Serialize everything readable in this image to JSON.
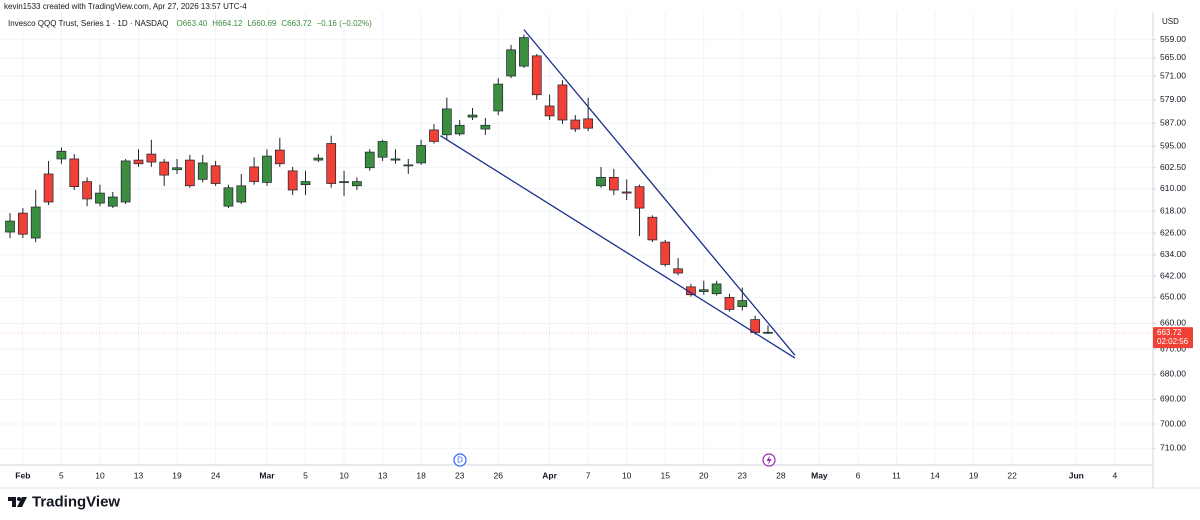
{
  "header": {
    "attribution": "kevin1533 created with TradingView.com, Apr 27, 2026 13:57 UTC-4",
    "symbol": "Invesco QQQ Trust, Series 1 · 1D · NASDAQ",
    "ohlc": [
      "O663.40",
      "H664.12",
      "L660.69",
      "C663.72",
      "−0.16 (−0.02%)"
    ]
  },
  "brand": "TradingView",
  "chart_data": {
    "type": "candlestick",
    "currency": "USD",
    "categories": [
      null,
      "Feb",
      null,
      null,
      "5",
      null,
      null,
      "10",
      null,
      null,
      "13",
      null,
      null,
      "19",
      null,
      null,
      "24",
      null,
      null,
      null,
      "Mar",
      null,
      null,
      "5",
      null,
      null,
      "10",
      null,
      null,
      "13",
      null,
      null,
      "18",
      null,
      null,
      "23",
      null,
      null,
      "26",
      null,
      null,
      null,
      "Apr",
      null,
      null,
      "7",
      null,
      null,
      "10",
      null,
      null,
      "15",
      null,
      null,
      "20",
      null,
      null,
      "23",
      null,
      null,
      "28",
      null,
      null,
      "May",
      null,
      null,
      "6",
      null,
      null,
      "11",
      null,
      null,
      "14",
      null,
      null,
      "19",
      null,
      null,
      "22",
      null,
      null,
      null,
      null,
      "Jun",
      null,
      null,
      "4",
      null,
      null
    ],
    "open": [
      621.6,
      626.4,
      616.5,
      614.7,
      596.7,
      609.2,
      613.6,
      611.5,
      612.9,
      600.1,
      601.1,
      600.5,
      605.1,
      602.5,
      608.9,
      600.8,
      608.1,
      609.6,
      608.9,
      607.4,
      598.4,
      601.1,
      610.4,
      607.4,
      599.1,
      608.1,
      607.4,
      607.4,
      597,
      593.3,
      599.4,
      601.5,
      594.7,
      593.3,
      582.1,
      587.7,
      584.2,
      587.7,
      573.7,
      562.3,
      558.3,
      577.3,
      584.5,
      585.9,
      589,
      588.7,
      605.9,
      610.4,
      611.5,
      616.9,
      628.5,
      637.6,
      640.8,
      649,
      647.1,
      644.9,
      654.6,
      651.2,
      663.5,
      663.4,
      null,
      null,
      null,
      null,
      null,
      null,
      null,
      null,
      null,
      null,
      null,
      null,
      null,
      null,
      null,
      null,
      null,
      null,
      null,
      null,
      null,
      null,
      null,
      null,
      null,
      null,
      null,
      null,
      null
    ],
    "high": [
      627.8,
      627.8,
      629.3,
      615.8,
      601.1,
      610.4,
      616.2,
      616.2,
      616.9,
      615.4,
      602.2,
      602.2,
      608.9,
      604.7,
      609.6,
      607.7,
      608.9,
      616.9,
      615.4,
      608.5,
      608.9,
      602.2,
      612.2,
      612.2,
      600.5,
      609.6,
      612.5,
      610.4,
      603.6,
      600.1,
      601.1,
      604.7,
      601.5,
      594,
      592.7,
      591.3,
      585.9,
      591,
      584.2,
      571.7,
      568.3,
      579,
      585.9,
      587.3,
      590,
      589.7,
      609.6,
      612.2,
      614,
      627.1,
      629.3,
      638.4,
      641.6,
      649.7,
      649,
      649.3,
      655.4,
      655,
      664.3,
      664.12,
      null,
      null,
      null,
      null,
      null,
      null,
      null,
      null,
      null,
      null,
      null,
      null,
      null,
      null,
      null,
      null,
      null,
      null,
      null,
      null,
      null,
      null,
      null,
      null,
      null,
      null,
      null,
      null,
      null
    ],
    "low": [
      618.7,
      616.9,
      610.4,
      600.1,
      595.4,
      597.7,
      605.9,
      608.5,
      611.1,
      599.4,
      596,
      592.7,
      599.4,
      599.4,
      598,
      598,
      600.1,
      608.5,
      604.7,
      598.8,
      596,
      592,
      602.2,
      603.6,
      597.7,
      591.3,
      603.6,
      605.9,
      596,
      592.7,
      596,
      599.4,
      592.7,
      587.3,
      578.3,
      585.9,
      581.8,
      585.2,
      571.7,
      560.7,
      557.3,
      563.7,
      577.3,
      572.4,
      584.2,
      578.3,
      602.2,
      602.9,
      606.6,
      608.5,
      619.5,
      628.5,
      635.2,
      644.9,
      643.7,
      643.7,
      648.6,
      646.3,
      657,
      660.69,
      null,
      null,
      null,
      null,
      null,
      null,
      null,
      null,
      null,
      null,
      null,
      null,
      null,
      null,
      null,
      null,
      null,
      null,
      null,
      null,
      null,
      null,
      null,
      null,
      null,
      null,
      null,
      null,
      null
    ],
    "close": [
      625.6,
      618.7,
      627.8,
      604.7,
      599.4,
      599.4,
      607.4,
      615.1,
      616.2,
      614.7,
      599.8,
      597.7,
      600.5,
      603.2,
      599.8,
      606.6,
      601.8,
      616.2,
      614.7,
      602.2,
      607.7,
      596.3,
      603.6,
      608.5,
      599.8,
      594,
      607.7,
      608.9,
      602.5,
      598.8,
      599.8,
      601.8,
      600.8,
      589.3,
      591,
      590.7,
      584.9,
      589,
      582.8,
      571,
      567.7,
      564.3,
      581.1,
      574,
      585.9,
      585.5,
      608.9,
      605.9,
      611.1,
      609.2,
      620.2,
      629.3,
      639.2,
      646,
      647.8,
      648.6,
      650,
      653.5,
      658.5,
      663.72,
      null,
      null,
      null,
      null,
      null,
      null,
      null,
      null,
      null,
      null,
      null,
      null,
      null,
      null,
      null,
      null,
      null,
      null,
      null,
      null,
      null,
      null,
      null,
      null,
      null,
      null,
      null,
      null,
      null
    ],
    "up_color": "#3b8d3f",
    "down_color": "#ef4136",
    "ylim": [
      550,
      717
    ],
    "log_scale": true,
    "inverted": true,
    "yticks": [
      {
        "value": 559,
        "label": "559.00"
      },
      {
        "value": 565,
        "label": "565.00"
      },
      {
        "value": 571,
        "label": "571.00"
      },
      {
        "value": 579,
        "label": "579.00"
      },
      {
        "value": 587,
        "label": "587.00"
      },
      {
        "value": 595,
        "label": "595.00"
      },
      {
        "value": 602.5,
        "label": "602.50"
      },
      {
        "value": 610,
        "label": "610.00"
      },
      {
        "value": 618,
        "label": "618.00"
      },
      {
        "value": 626,
        "label": "626.00"
      },
      {
        "value": 634,
        "label": "634.00"
      },
      {
        "value": 642,
        "label": "642.00"
      },
      {
        "value": 650,
        "label": "650.00"
      },
      {
        "value": 660,
        "label": "660.00"
      },
      {
        "value": 670,
        "label": "670.00"
      },
      {
        "value": 680,
        "label": "680.00"
      },
      {
        "value": 690,
        "label": "690.00"
      },
      {
        "value": 700,
        "label": "700.00"
      },
      {
        "value": 710,
        "label": "710.00"
      }
    ],
    "grid": true,
    "last_price": 663.72,
    "countdown": "02:02:56",
    "trendlines": [
      {
        "color": "#1a2f8a",
        "points": [
          [
            40,
            555.7
          ],
          [
            61.1,
            672.4
          ]
        ]
      },
      {
        "color": "#1a2f8a",
        "points": [
          [
            33.5,
            591.3
          ],
          [
            61.1,
            673.5
          ]
        ]
      }
    ]
  }
}
